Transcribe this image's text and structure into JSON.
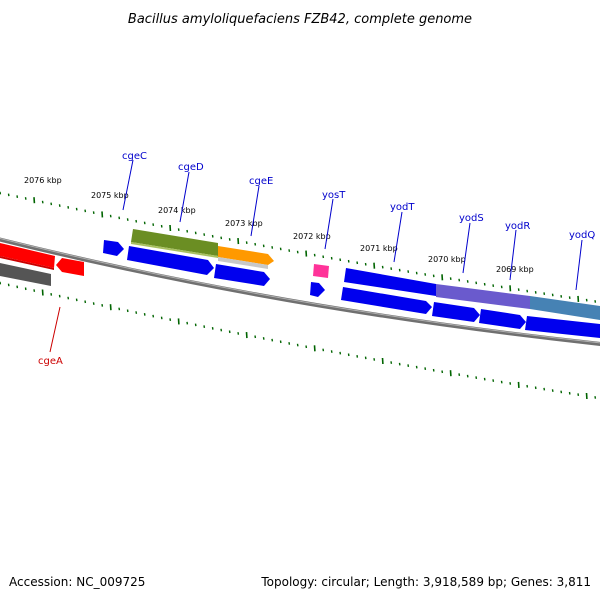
{
  "title": "Bacillus amyloliquefaciens FZB42, complete genome",
  "footer": {
    "accession": "Accession: NC_009725",
    "summary": "Topology: circular; Length: 3,918,589 bp; Genes: 3,811"
  },
  "scale": {
    "unit": "kbp",
    "labels": [
      "2076 kbp",
      "2075 kbp",
      "2074 kbp",
      "2073 kbp",
      "2072 kbp",
      "2071 kbp",
      "2070 kbp",
      "2069 kbp"
    ]
  },
  "genes": [
    {
      "name": "cgeC",
      "color": "#0000cc"
    },
    {
      "name": "cgeD",
      "color": "#0000cc"
    },
    {
      "name": "cgeE",
      "color": "#0000cc"
    },
    {
      "name": "yosT",
      "color": "#0000cc"
    },
    {
      "name": "yodT",
      "color": "#0000cc"
    },
    {
      "name": "yodS",
      "color": "#0000cc"
    },
    {
      "name": "yodR",
      "color": "#0000cc"
    },
    {
      "name": "yodQ",
      "color": "#0000cc"
    },
    {
      "name": "cgeA",
      "color": "#cc0000"
    }
  ],
  "colors": {
    "forward_strand": "#0000ff",
    "reverse_strand": "#ff0000",
    "backbone": "#808080",
    "ticks": "#006400",
    "olive": "#6b8e23",
    "orange": "#ff9900",
    "pink": "#ff3399",
    "purple": "#6a5acd",
    "steelblue": "#4682b4",
    "darkgray": "#555555"
  }
}
